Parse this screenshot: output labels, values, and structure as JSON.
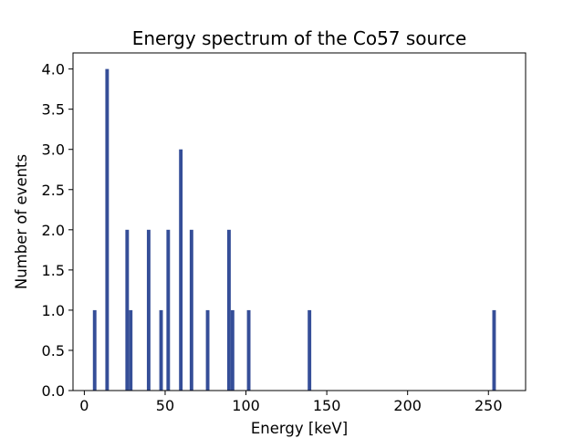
{
  "chart_data": {
    "type": "bar",
    "title": "Energy spectrum of the Co57 source",
    "xlabel": "Energy [keV]",
    "ylabel": "Number of events",
    "xlim": [
      -7,
      273
    ],
    "ylim": [
      0,
      4.2
    ],
    "xticks": [
      0,
      50,
      100,
      150,
      200,
      250
    ],
    "yticks": [
      "0.0",
      "0.5",
      "1.0",
      "1.5",
      "2.0",
      "2.5",
      "3.0",
      "3.5",
      "4.0"
    ],
    "bin_width": 2.2,
    "bars_color": "#354e98",
    "bins": [
      {
        "x": 6.4,
        "count": 1
      },
      {
        "x": 14.1,
        "count": 4
      },
      {
        "x": 26.5,
        "count": 2
      },
      {
        "x": 28.7,
        "count": 1
      },
      {
        "x": 39.8,
        "count": 2
      },
      {
        "x": 47.5,
        "count": 1
      },
      {
        "x": 51.9,
        "count": 2
      },
      {
        "x": 59.7,
        "count": 3
      },
      {
        "x": 66.3,
        "count": 2
      },
      {
        "x": 76.3,
        "count": 1
      },
      {
        "x": 89.5,
        "count": 2
      },
      {
        "x": 91.7,
        "count": 1
      },
      {
        "x": 101.7,
        "count": 1
      },
      {
        "x": 139.3,
        "count": 1
      },
      {
        "x": 253.5,
        "count": 1
      }
    ],
    "grid": false,
    "legend": "none"
  }
}
